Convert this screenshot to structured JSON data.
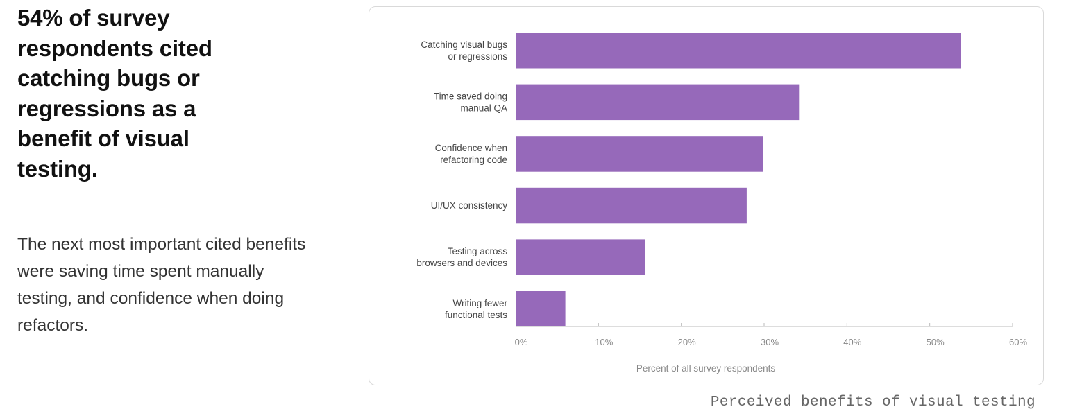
{
  "headline": "54% of survey respondents cited catching bugs or regressions as a benefit of visual testing.",
  "body": "The next most important cited benefits were saving time spent manually testing, and confidence when doing refactors.",
  "caption": "Perceived benefits of visual testing",
  "colors": {
    "bar": "#9669ba",
    "axis": "#bbbbbb",
    "category_label": "#444444",
    "tick_label": "#888888",
    "card_border": "#d9d9d9"
  },
  "chart_data": {
    "type": "bar",
    "orientation": "horizontal",
    "categories": [
      [
        "Catching visual bugs",
        "or regressions"
      ],
      [
        "Time saved doing",
        "manual QA"
      ],
      [
        "Confidence when",
        "refactoring code"
      ],
      [
        "UI/UX consistency"
      ],
      [
        "Testing across",
        "browsers and devices"
      ],
      [
        "Writing fewer",
        "functional tests"
      ]
    ],
    "values": [
      53.8,
      34.3,
      29.9,
      27.9,
      15.6,
      6.0
    ],
    "xlabel": "Percent of all survey respondents",
    "xlim": [
      0,
      60
    ],
    "xticks": [
      0,
      10,
      20,
      30,
      40,
      50,
      60
    ],
    "xtick_labels": [
      "0%",
      "10%",
      "20%",
      "30%",
      "40%",
      "50%",
      "60%"
    ],
    "grid": false
  }
}
